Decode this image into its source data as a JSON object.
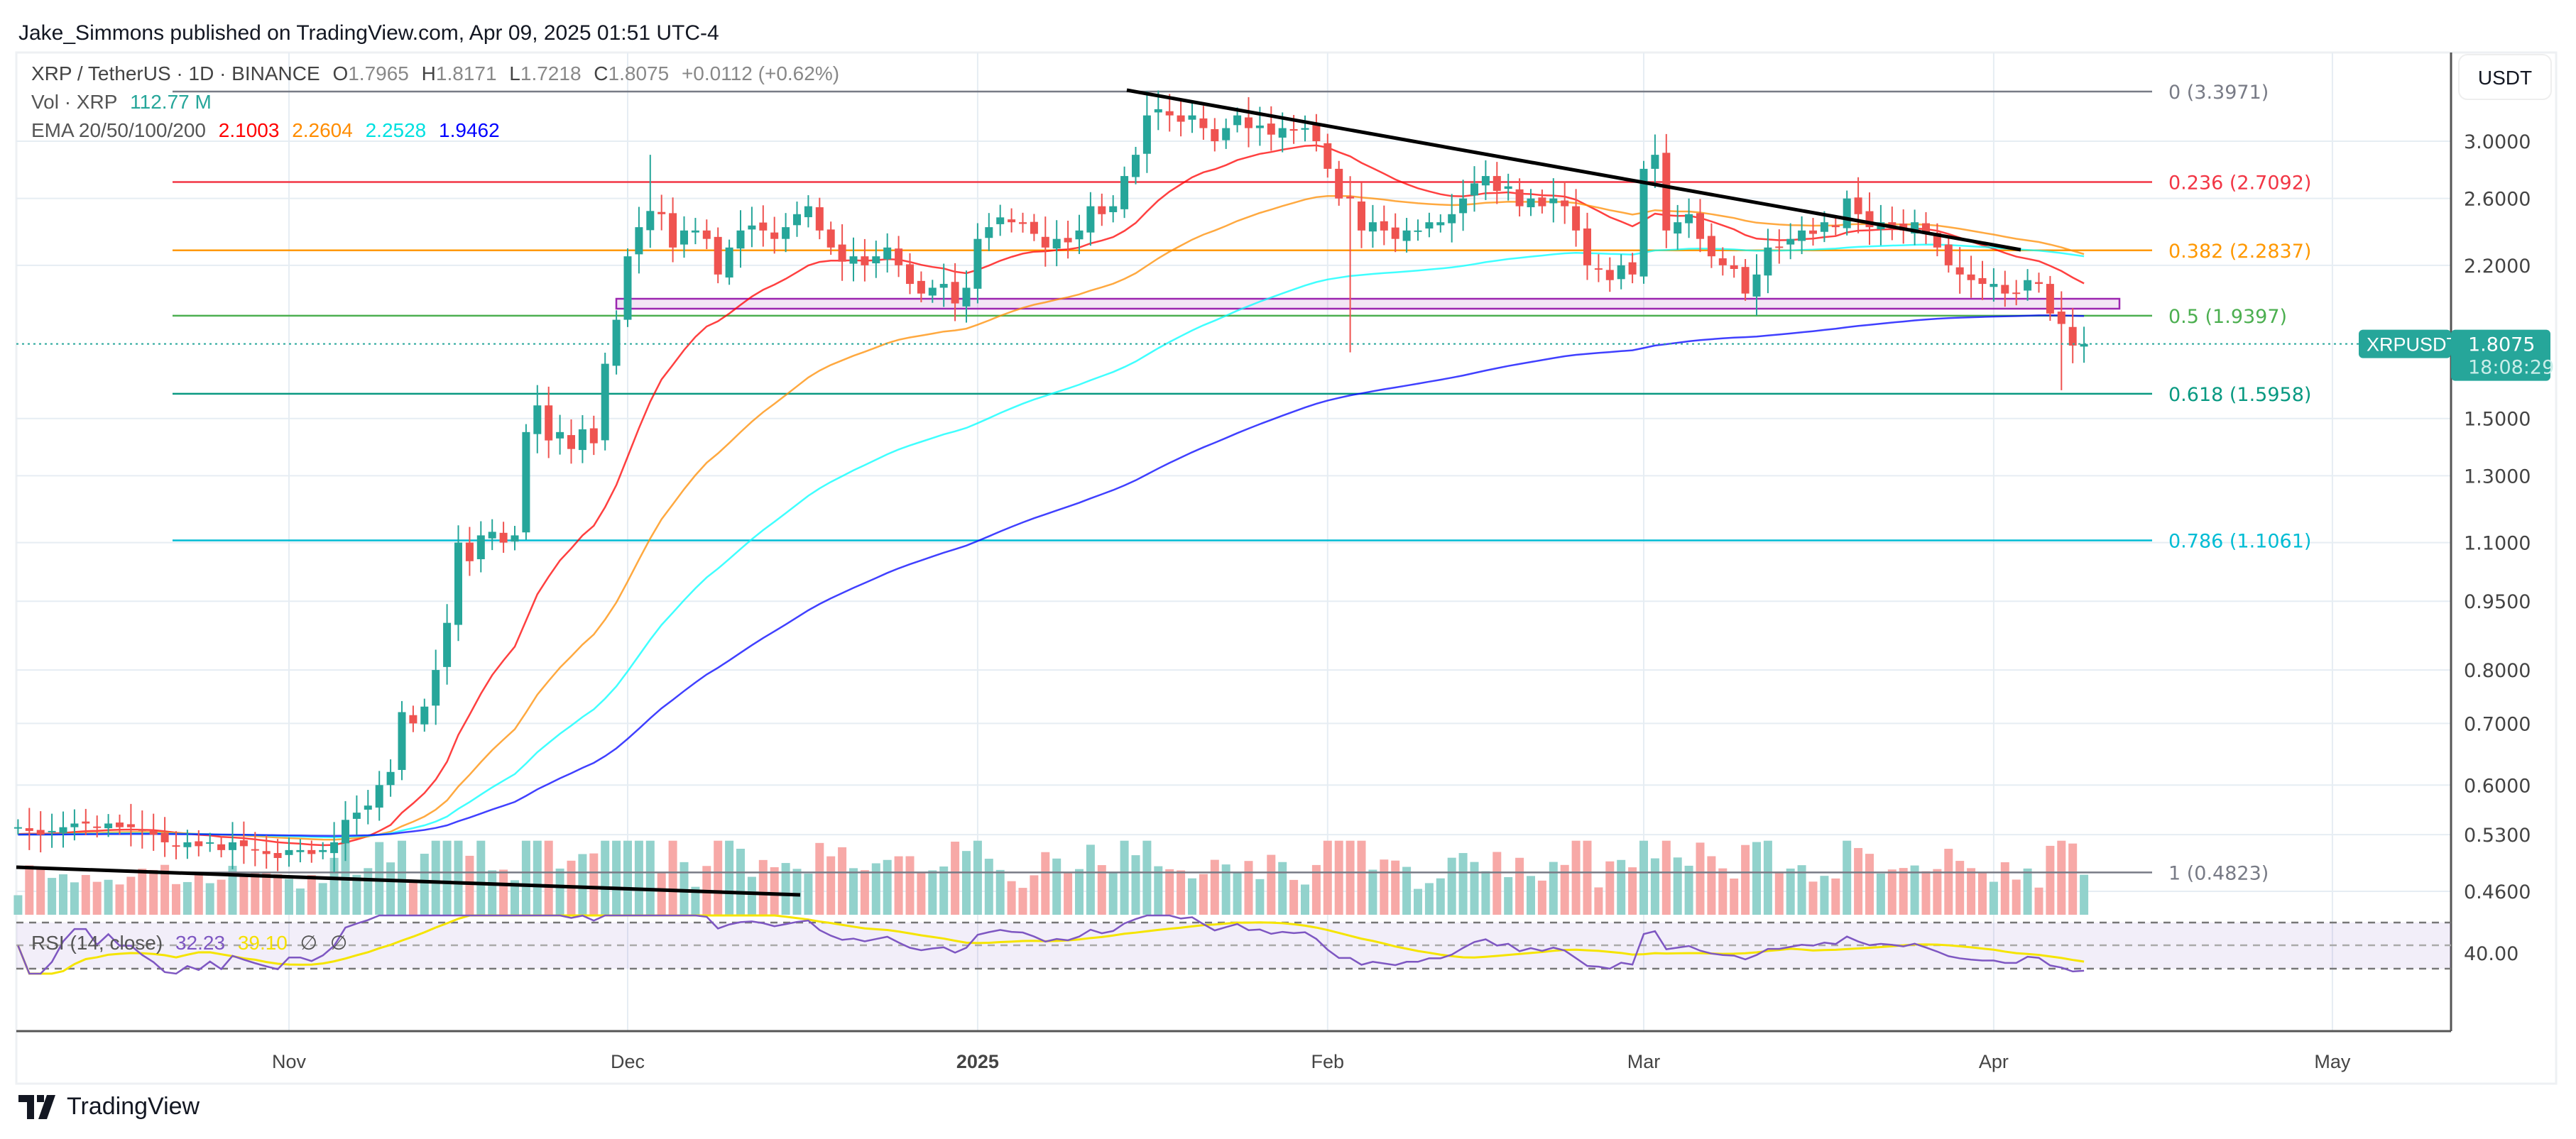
{
  "header": {
    "published": "Jake_Simmons published on TradingView.com, Apr 09, 2025 01:51 UTC-4"
  },
  "legend": {
    "symbol": "XRP / TetherUS · 1D · BINANCE",
    "o_label": "O",
    "o": "1.7965",
    "h_label": "H",
    "h": "1.8171",
    "l_label": "L",
    "l": "1.7218",
    "c_label": "C",
    "c": "1.8075",
    "change": "+0.0112 (+0.62%)",
    "vol_label": "Vol · XRP",
    "vol": "112.77 M",
    "ema_label": "EMA 20/50/100/200",
    "ema20": "2.1003",
    "ema50": "2.2604",
    "ema100": "2.2528",
    "ema200": "1.9462",
    "rsi_label": "RSI (14, close)",
    "rsi": "32.23",
    "rsi_ma": "39.10",
    "rsi_na1": "∅",
    "rsi_na2": "∅"
  },
  "price_axis": {
    "currency": "USDT",
    "ticks": [
      "3.0000",
      "2.6000",
      "2.2000",
      "1.5000",
      "1.3000",
      "1.1000",
      "0.9500",
      "0.8000",
      "0.7000",
      "0.6000",
      "0.5300",
      "0.4600"
    ],
    "rsi_tick": "40.00"
  },
  "price_tag": {
    "symbol": "XRPUSDT",
    "price": "1.8075",
    "countdown": "18:08:29",
    "color": "#26a69a"
  },
  "time_axis": [
    "Nov",
    "Dec",
    "2025",
    "Feb",
    "Mar",
    "Apr",
    "May"
  ],
  "fib_levels": [
    {
      "label": "0 (3.3971)",
      "value": 3.3971,
      "color": "#787b86"
    },
    {
      "label": "0.236 (2.7092)",
      "value": 2.7092,
      "color": "#f23645"
    },
    {
      "label": "0.382 (2.2837)",
      "value": 2.2837,
      "color": "#ff9800"
    },
    {
      "label": "0.5 (1.9397)",
      "value": 1.9397,
      "color": "#4caf50"
    },
    {
      "label": "0.618 (1.5958)",
      "value": 1.5958,
      "color": "#089981"
    },
    {
      "label": "0.786 (1.1061)",
      "value": 1.1061,
      "color": "#00bcd4"
    },
    {
      "label": "1 (0.4823)",
      "value": 0.4823,
      "color": "#787b86"
    }
  ],
  "colors": {
    "up": "#26a69a",
    "down": "#ef5350",
    "ema20": "#ff0000",
    "ema50": "#ff8c00",
    "ema100": "#00ffff",
    "ema200": "#0000ff",
    "rsi": "#7e57c2",
    "rsi_ma": "#ffeb3b"
  },
  "brand": {
    "name": "TradingView"
  },
  "chart_data": {
    "type": "candlestick",
    "scale": "log",
    "start_date": "2024-10-08",
    "closes": [
      0.54,
      0.535,
      0.53,
      0.535,
      0.54,
      0.545,
      0.545,
      0.54,
      0.545,
      0.54,
      0.54,
      0.535,
      0.53,
      0.52,
      0.515,
      0.52,
      0.515,
      0.52,
      0.51,
      0.52,
      0.515,
      0.51,
      0.505,
      0.5,
      0.51,
      0.51,
      0.505,
      0.51,
      0.52,
      0.55,
      0.56,
      0.57,
      0.6,
      0.62,
      0.72,
      0.7,
      0.73,
      0.8,
      0.9,
      1.1,
      1.05,
      1.12,
      1.13,
      1.1,
      1.12,
      1.45,
      1.55,
      1.42,
      1.45,
      1.39,
      1.46,
      1.41,
      1.72,
      1.92,
      2.25,
      2.42,
      2.52,
      2.5,
      2.3,
      2.4,
      2.4,
      2.35,
      2.15,
      2.3,
      2.4,
      2.43,
      2.4,
      2.35,
      2.42,
      2.5,
      2.55,
      2.4,
      2.3,
      2.22,
      2.25,
      2.2,
      2.25,
      2.3,
      2.2,
      2.1,
      2.05,
      2.08,
      2.1,
      2.0,
      2.08,
      2.35,
      2.42,
      2.48,
      2.45,
      2.44,
      2.38,
      2.3,
      2.35,
      2.33,
      2.4,
      2.55,
      2.5,
      2.55,
      2.75,
      2.9,
      3.2,
      3.25,
      3.2,
      3.15,
      3.2,
      3.1,
      3.0,
      3.1,
      3.2,
      3.1,
      3.12,
      3.05,
      3.1,
      3.08,
      3.1,
      3.0,
      2.8,
      2.6,
      2.6,
      2.4,
      2.45,
      2.4,
      2.35,
      2.4,
      2.4,
      2.45,
      2.45,
      2.5,
      2.6,
      2.7,
      2.75,
      2.65,
      2.68,
      2.55,
      2.6,
      2.55,
      2.6,
      2.55,
      2.4,
      2.2,
      2.18,
      2.12,
      2.2,
      2.15,
      2.8,
      2.9,
      2.4,
      2.45,
      2.5,
      2.35,
      2.25,
      2.2,
      2.18,
      2.05,
      2.15,
      2.3,
      2.3,
      2.35,
      2.4,
      2.38,
      2.45,
      2.42,
      2.6,
      2.5,
      2.42,
      2.45,
      2.43,
      2.4,
      2.45,
      2.38,
      2.3,
      2.2,
      2.15,
      2.12,
      2.1,
      2.1,
      2.05,
      2.05,
      2.12,
      2.1,
      1.95,
      1.9,
      1.8,
      1.8075
    ],
    "notable_wicks": [
      {
        "date": "2025-02-03",
        "low": 1.77
      },
      {
        "date": "2025-04-07",
        "low": 1.61
      },
      {
        "date": "2024-12-03",
        "high": 2.9
      },
      {
        "date": "2025-01-16",
        "high": 3.4
      }
    ]
  }
}
